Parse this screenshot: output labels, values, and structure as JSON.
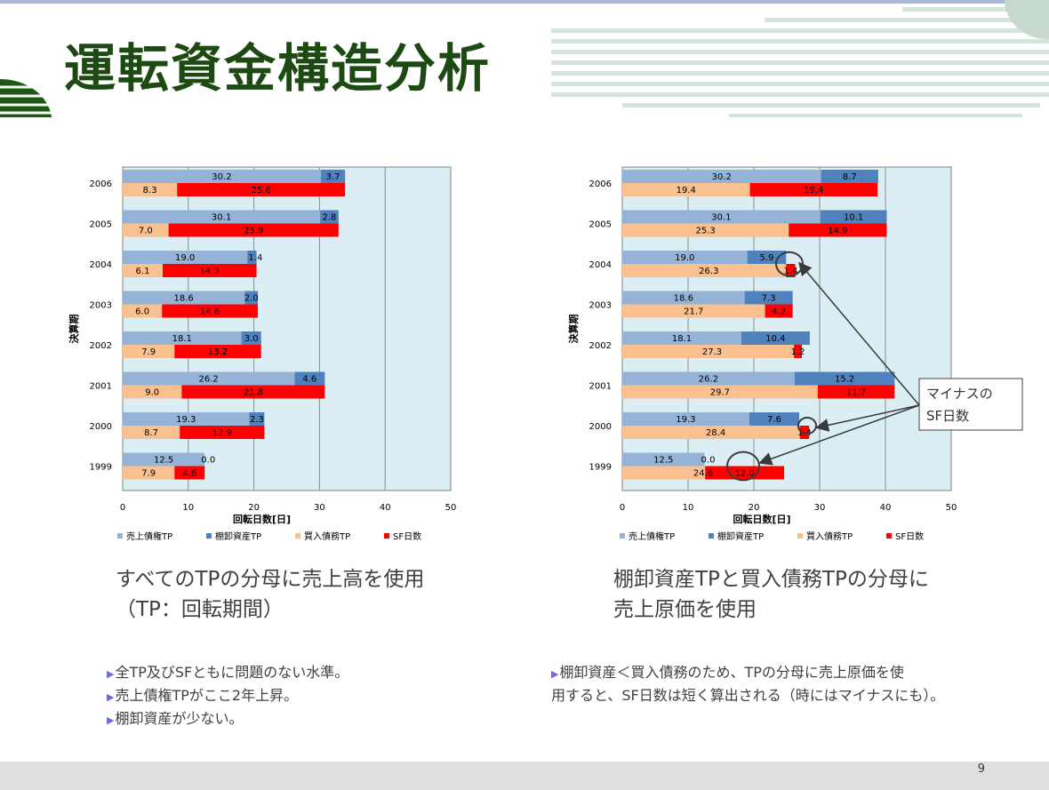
{
  "slide": {
    "title": "運転資金構造分析",
    "page_number": "9"
  },
  "chart_data": [
    {
      "type": "bar",
      "orientation": "horizontal",
      "categories": [
        "2006",
        "2005",
        "2004",
        "2003",
        "2002",
        "2001",
        "2000",
        "1999"
      ],
      "ylabel": "決算期",
      "xlabel": "回転日数[日]",
      "xlim": [
        0,
        50
      ],
      "xticks": [
        "0",
        "10",
        "20",
        "30",
        "40",
        "50"
      ],
      "grid": true,
      "legend_position": "bottom",
      "series": [
        {
          "name": "売上債権TP",
          "color": "#95b3d7",
          "values": [
            30.2,
            30.1,
            19.0,
            18.6,
            18.1,
            26.2,
            19.3,
            12.5
          ]
        },
        {
          "name": "棚卸資産TP",
          "color": "#4f81bd",
          "values": [
            3.7,
            2.8,
            1.4,
            2.0,
            3.0,
            4.6,
            2.3,
            0.0
          ]
        },
        {
          "name": "買入債務TP",
          "color": "#fac090",
          "values": [
            8.3,
            7.0,
            6.1,
            6.0,
            7.9,
            9.0,
            8.7,
            7.9
          ]
        },
        {
          "name": "SF日数",
          "color": "#ff0000",
          "values": [
            25.6,
            25.9,
            14.3,
            14.6,
            13.2,
            21.8,
            12.9,
            4.6
          ]
        }
      ]
    },
    {
      "type": "bar",
      "orientation": "horizontal",
      "categories": [
        "2006",
        "2005",
        "2004",
        "2003",
        "2002",
        "2001",
        "2000",
        "1999"
      ],
      "ylabel": "決算期",
      "xlabel": "回転日数[日]",
      "xlim": [
        0,
        50
      ],
      "xticks": [
        "0",
        "10",
        "20",
        "30",
        "40",
        "50"
      ],
      "grid": true,
      "legend_position": "bottom",
      "series": [
        {
          "name": "売上債権TP",
          "color": "#95b3d7",
          "values": [
            30.2,
            30.1,
            19.0,
            18.6,
            18.1,
            26.2,
            19.3,
            12.5
          ]
        },
        {
          "name": "棚卸資産TP",
          "color": "#4f81bd",
          "values": [
            8.7,
            10.1,
            5.9,
            7.3,
            10.4,
            15.2,
            7.6,
            0.0
          ]
        },
        {
          "name": "買入債務TP",
          "color": "#fac090",
          "values": [
            19.4,
            25.3,
            26.3,
            21.7,
            27.3,
            29.7,
            28.4,
            24.6
          ]
        },
        {
          "name": "SF日数",
          "color": "#ff0000",
          "values": [
            19.4,
            14.9,
            1.4,
            4.2,
            1.2,
            11.7,
            1.4,
            12.0
          ]
        }
      ],
      "negative_sf": {
        "2004": true,
        "2002": true,
        "2000": true,
        "1999": true
      },
      "annotation": {
        "text_line1": "マイナスの",
        "text_line2": "SF日数",
        "circled_categories": [
          "2004",
          "2000",
          "1999"
        ]
      }
    }
  ],
  "captions": {
    "left_line1": "すべてのTPの分母に売上高を使用",
    "left_line2": "（TP：回転期間）",
    "right_line1": "棚卸資産TPと買入債務TPの分母に",
    "right_line2": "売上原価を使用"
  },
  "notes": {
    "left": [
      "全TP及びSFともに問題のない水準。",
      "売上債権TPがここ2年上昇。",
      "棚卸資産が少ない。"
    ],
    "right_line1": "棚卸資産＜買入債務のため、TPの分母に売上原価を使",
    "right_line2": "用すると、SF日数は短く算出される（時にはマイナスにも）。"
  },
  "colors": {
    "title": "#1c4a12",
    "plot_bg": "#dbeef4",
    "accent_green": "#1c5a14"
  }
}
